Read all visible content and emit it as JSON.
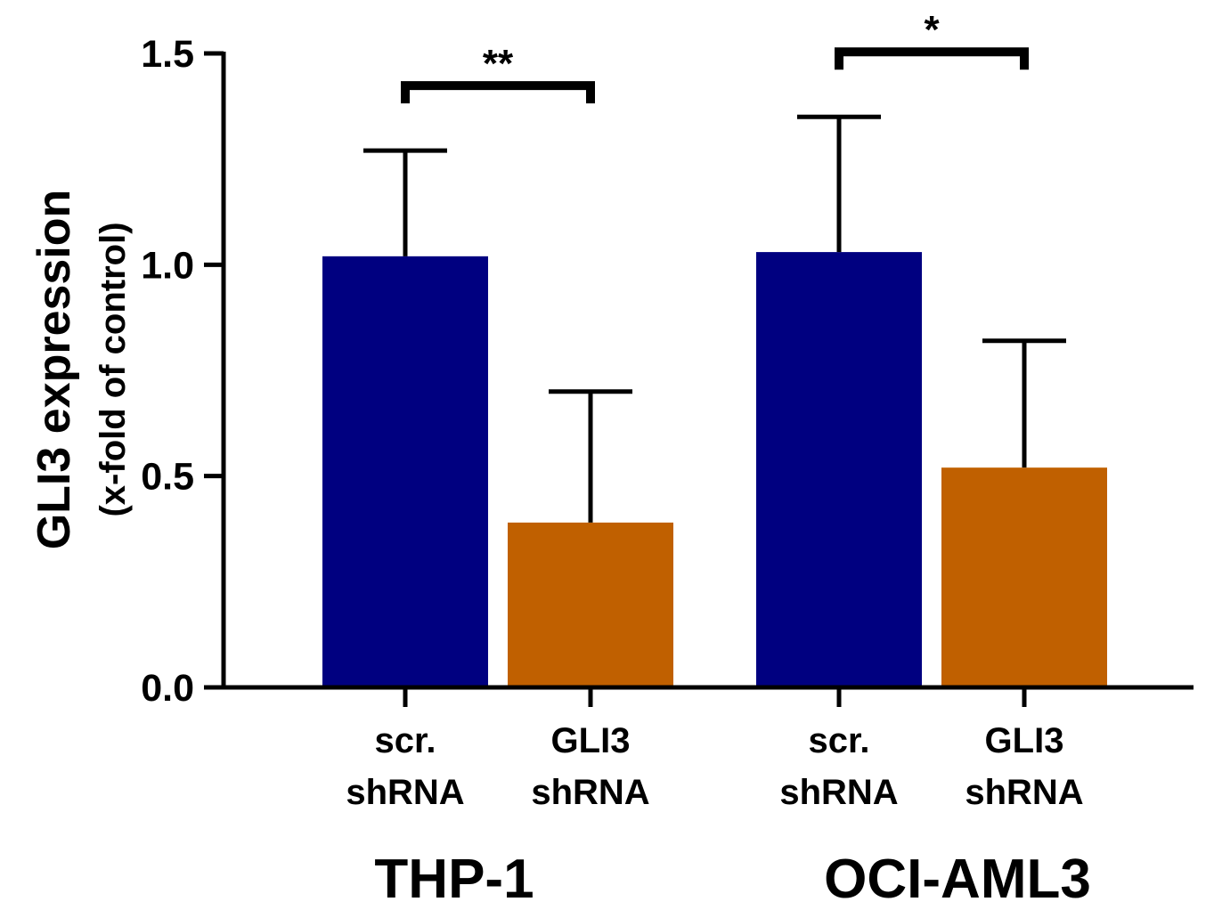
{
  "chart_data": {
    "type": "bar",
    "title": "",
    "ylabel_line1": "GLI3 expression",
    "ylabel_line2": "(x-fold of control)",
    "ylim": [
      0,
      1.5
    ],
    "yticks": [
      0.0,
      0.5,
      1.0,
      1.5
    ],
    "ytick_labels": [
      "0.0",
      "0.5",
      "1.0",
      "1.5"
    ],
    "grid": false,
    "legend": "none",
    "groups": [
      {
        "name": "THP-1",
        "bars": [
          {
            "label_line1": "scr.",
            "label_line2": "shRNA",
            "value": 1.02,
            "error": 0.25,
            "color": "#000080"
          },
          {
            "label_line1": "GLI3",
            "label_line2": "shRNA",
            "value": 0.39,
            "error": 0.31,
            "color": "#C06000"
          }
        ],
        "significance": "**"
      },
      {
        "name": "OCI-AML3",
        "bars": [
          {
            "label_line1": "scr.",
            "label_line2": "shRNA",
            "value": 1.03,
            "error": 0.32,
            "color": "#000080"
          },
          {
            "label_line1": "GLI3",
            "label_line2": "shRNA",
            "value": 0.52,
            "error": 0.3,
            "color": "#C06000"
          }
        ],
        "significance": "*"
      }
    ]
  }
}
